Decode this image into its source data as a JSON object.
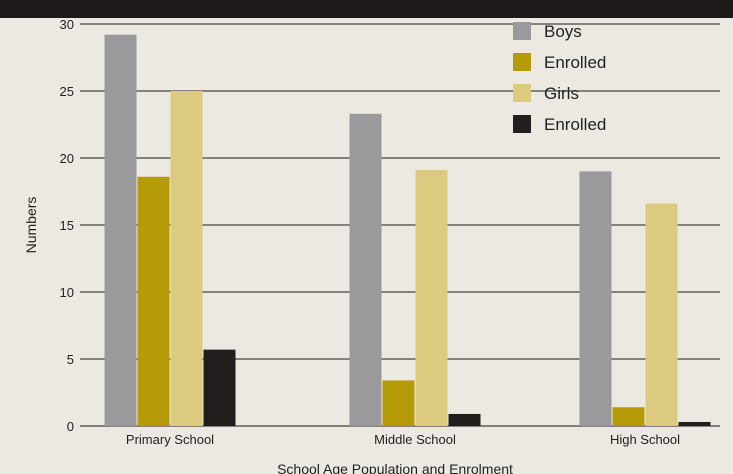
{
  "chart_data": {
    "type": "bar",
    "title": "",
    "xlabel": "School Age Population and Enrolment",
    "ylabel": "Numbers",
    "ylim": [
      0,
      30
    ],
    "yticks": [
      0,
      5,
      10,
      15,
      20,
      25,
      30
    ],
    "grid": true,
    "legend_position": "top-right",
    "categories": [
      "Primary School",
      "Middle School",
      "High School"
    ],
    "series": [
      {
        "name": "Boys",
        "color": "#9a9a9c",
        "values": [
          29.2,
          23.3,
          19.0
        ]
      },
      {
        "name": "Enrolled",
        "color": "#b59b08",
        "values": [
          18.6,
          3.4,
          1.4
        ]
      },
      {
        "name": "Girls",
        "color": "#dcca7e",
        "values": [
          25.0,
          19.1,
          16.6
        ]
      },
      {
        "name": "Enrolled",
        "color": "#221e1e",
        "values": [
          5.7,
          0.9,
          0.3
        ]
      }
    ]
  }
}
